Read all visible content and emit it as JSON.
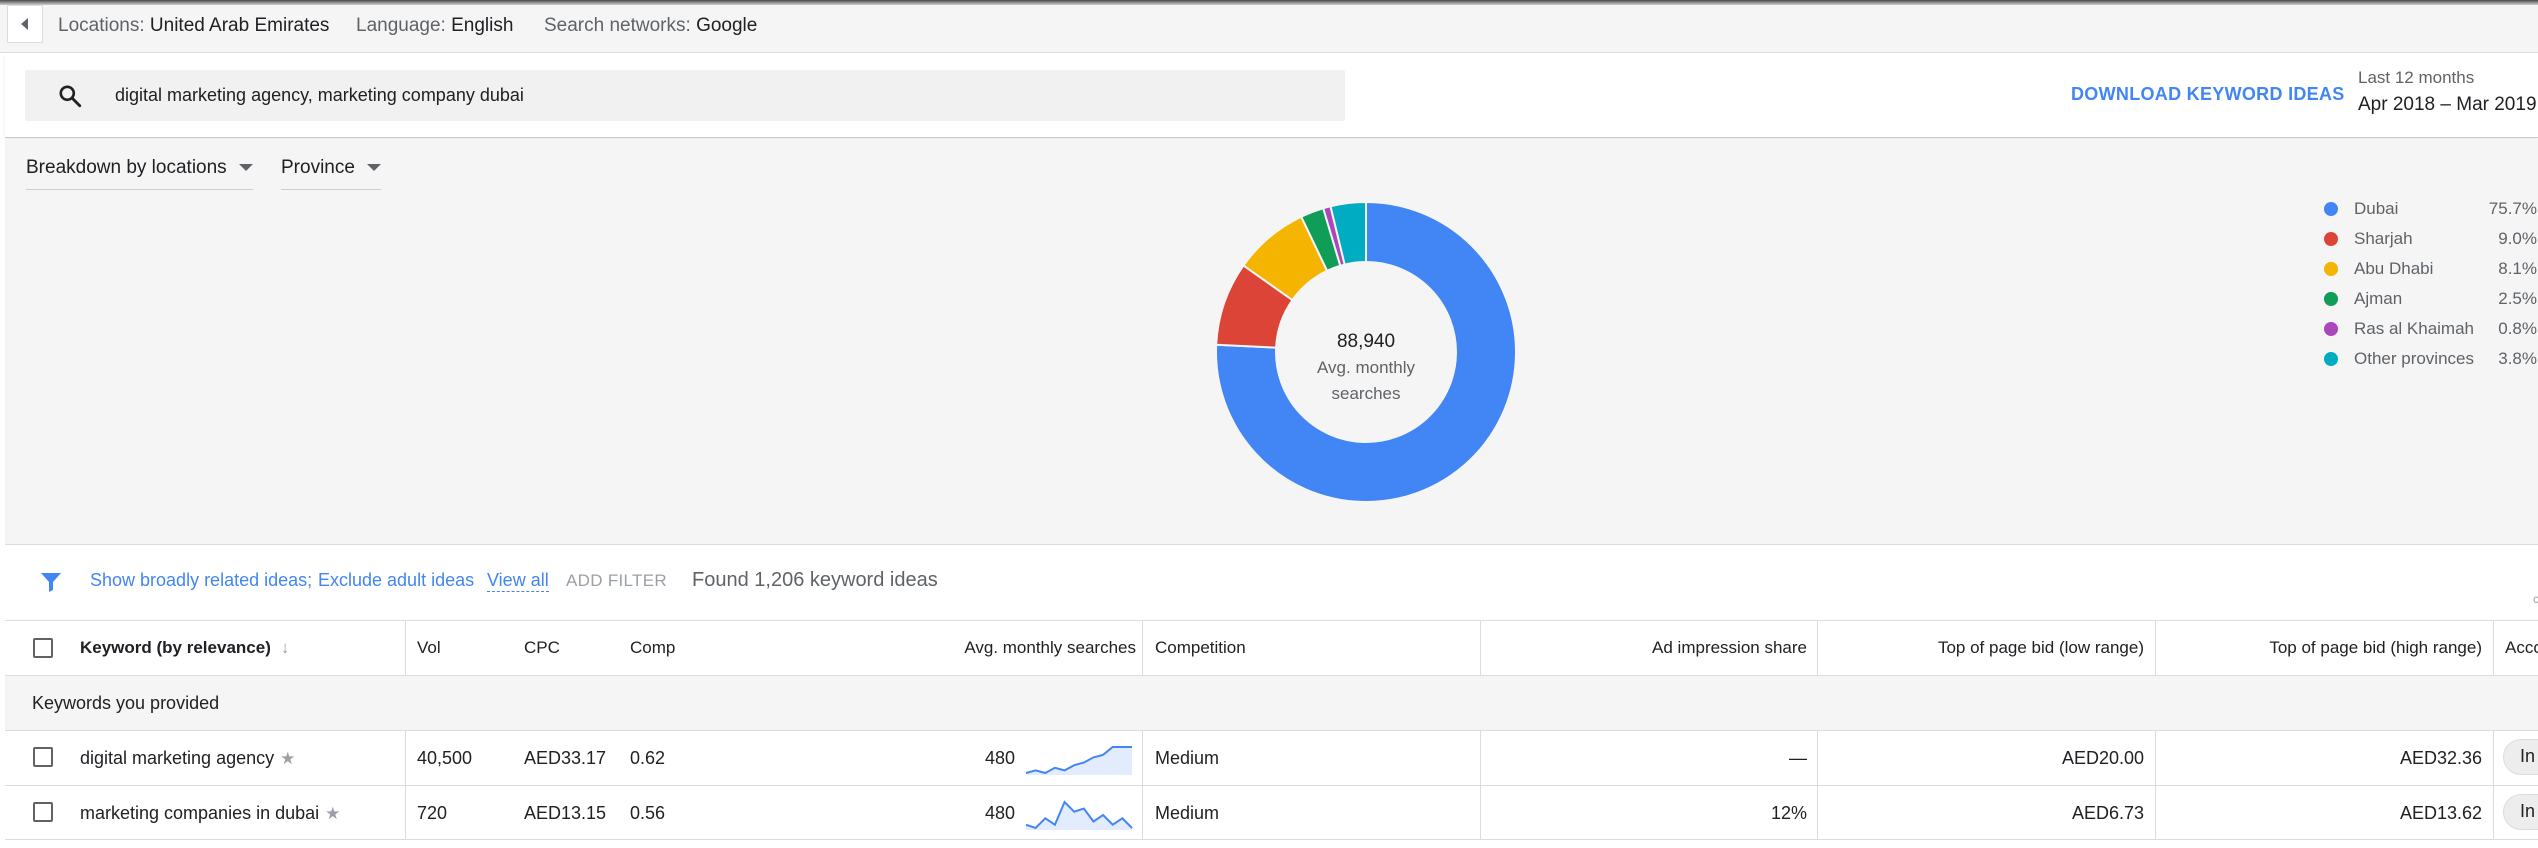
{
  "topbar": {
    "back_icon": "triangle-left-icon",
    "locations_label": "Locations:",
    "locations_value": "United Arab Emirates",
    "language_label": "Language:",
    "language_value": "English",
    "networks_label": "Search networks:",
    "networks_value": "Google"
  },
  "search": {
    "icon": "search-icon",
    "query": "digital marketing agency, marketing company dubai",
    "download_label": "DOWNLOAD KEYWORD IDEAS",
    "period_label": "Last 12 months",
    "period_value": "Apr 2018 – Mar 2019"
  },
  "breakdown": {
    "dropdown1": "Breakdown by locations",
    "dropdown2": "Province"
  },
  "chart_data": {
    "type": "pie",
    "center_value": "88,940",
    "center_label_line1": "Avg. monthly",
    "center_label_line2": "searches",
    "slices": [
      {
        "name": "Dubai",
        "percent_label": "75.7%",
        "value": 75.7,
        "color": "#4285f4"
      },
      {
        "name": "Sharjah",
        "percent_label": "9.0%",
        "value": 9.0,
        "color": "#db4437"
      },
      {
        "name": "Abu Dhabi",
        "percent_label": "8.1%",
        "value": 8.1,
        "color": "#f4b400"
      },
      {
        "name": "Ajman",
        "percent_label": "2.5%",
        "value": 2.5,
        "color": "#0f9d58"
      },
      {
        "name": "Ras al Khaimah",
        "percent_label": "0.8%",
        "value": 0.8,
        "color": "#ab47bc"
      },
      {
        "name": "Other provinces",
        "percent_label": "3.8%",
        "value": 3.8,
        "color": "#00acc1"
      }
    ],
    "legend_placement": "right"
  },
  "filters": {
    "icon": "filter-funnel-icon",
    "broad": "Show broadly related ideas;",
    "adult": "Exclude adult ideas",
    "view_all": "View all",
    "add_filter": "ADD FILTER",
    "found": "Found 1,206 keyword ideas",
    "corner_text": "c"
  },
  "table": {
    "headers": {
      "keyword": "Keyword (by relevance)",
      "vol": "Vol",
      "cpc": "CPC",
      "comp": "Comp",
      "avg": "Avg. monthly searches",
      "competition": "Competition",
      "impr": "Ad impression share",
      "bid_low": "Top of page bid (low range)",
      "bid_high": "Top of page bid (high range)",
      "account": "Acco"
    },
    "sort_icon": "arrow-down-icon",
    "group_label": "Keywords you provided",
    "rows": [
      {
        "keyword": "digital marketing agency",
        "vol": "40,500",
        "cpc": "AED33.17",
        "comp": "0.62",
        "avg": "480",
        "trend": [
          2,
          3,
          2,
          4,
          3,
          5,
          6,
          8,
          9,
          12,
          12,
          12
        ],
        "competition": "Medium",
        "impr": "—",
        "bid_low": "AED20.00",
        "bid_high": "AED32.36",
        "account": "In"
      },
      {
        "keyword": "marketing companies in dubai",
        "vol": "720",
        "cpc": "AED13.15",
        "comp": "0.56",
        "avg": "480",
        "trend": [
          3,
          2,
          5,
          3,
          10,
          7,
          8,
          4,
          6,
          3,
          5,
          2
        ],
        "competition": "Medium",
        "impr": "12%",
        "bid_low": "AED6.73",
        "bid_high": "AED13.62",
        "account": "In"
      }
    ]
  }
}
